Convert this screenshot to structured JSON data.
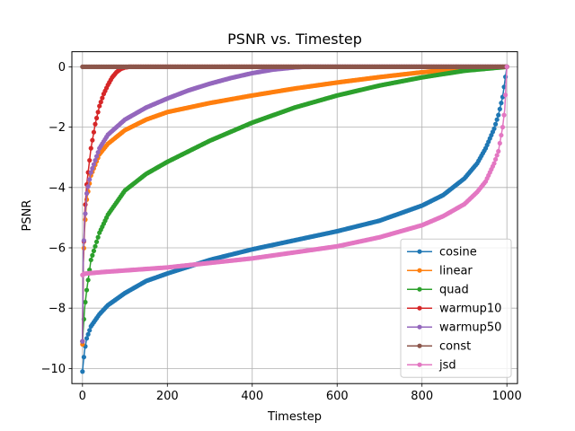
{
  "chart_data": {
    "type": "line",
    "title": "PSNR vs. Timestep",
    "xlabel": "Timestep",
    "ylabel": "PSNR",
    "xlim": [
      -25,
      1025
    ],
    "ylim": [
      -10.5,
      0.5
    ],
    "xticks": [
      0,
      200,
      400,
      600,
      800,
      1000
    ],
    "yticks": [
      -10,
      -8,
      -6,
      -4,
      -2,
      0
    ],
    "xtick_labels": [
      "0",
      "200",
      "400",
      "600",
      "800",
      "1000"
    ],
    "ytick_labels": [
      "−10",
      "−8",
      "−6",
      "−4",
      "−2",
      "0"
    ],
    "grid": true,
    "legend_position": "lower-right",
    "series": [
      {
        "name": "cosine",
        "color": "#1f77b4",
        "x": [
          0,
          2,
          5,
          10,
          20,
          40,
          60,
          100,
          150,
          200,
          300,
          400,
          500,
          600,
          700,
          800,
          850,
          900,
          930,
          950,
          970,
          980,
          990,
          995,
          1000
        ],
        "values": [
          -10.1,
          -9.8,
          -9.4,
          -9.0,
          -8.6,
          -8.2,
          -7.9,
          -7.5,
          -7.1,
          -6.85,
          -6.4,
          -6.05,
          -5.75,
          -5.45,
          -5.1,
          -4.6,
          -4.25,
          -3.7,
          -3.2,
          -2.7,
          -2.05,
          -1.6,
          -1.0,
          -0.5,
          0.0
        ]
      },
      {
        "name": "linear",
        "color": "#ff7f0e",
        "x": [
          0,
          2,
          5,
          10,
          20,
          40,
          60,
          100,
          150,
          200,
          300,
          400,
          500,
          600,
          700,
          800,
          900,
          1000
        ],
        "values": [
          -9.2,
          -6.5,
          -5.4,
          -4.4,
          -3.6,
          -2.9,
          -2.55,
          -2.1,
          -1.75,
          -1.5,
          -1.2,
          -0.95,
          -0.72,
          -0.52,
          -0.34,
          -0.18,
          -0.06,
          0.0
        ]
      },
      {
        "name": "quad",
        "color": "#2ca02c",
        "x": [
          0,
          5,
          10,
          20,
          40,
          60,
          100,
          150,
          200,
          300,
          400,
          500,
          600,
          700,
          800,
          900,
          1000
        ],
        "values": [
          -9.1,
          -8.0,
          -7.4,
          -6.4,
          -5.5,
          -4.9,
          -4.1,
          -3.55,
          -3.15,
          -2.45,
          -1.85,
          -1.35,
          -0.95,
          -0.62,
          -0.35,
          -0.13,
          0.0
        ]
      },
      {
        "name": "warmup10",
        "color": "#d62728",
        "x": [
          0,
          2,
          5,
          10,
          20,
          30,
          40,
          50,
          60,
          70,
          80,
          90,
          100,
          110,
          1000
        ],
        "values": [
          -9.1,
          -6.5,
          -4.9,
          -3.9,
          -2.7,
          -1.9,
          -1.3,
          -0.9,
          -0.6,
          -0.35,
          -0.18,
          -0.07,
          -0.02,
          0.0,
          0.0
        ]
      },
      {
        "name": "warmup50",
        "color": "#9467bd",
        "x": [
          0,
          2,
          5,
          10,
          20,
          40,
          60,
          100,
          150,
          200,
          250,
          300,
          350,
          400,
          450,
          500,
          520,
          1000
        ],
        "values": [
          -9.1,
          -6.2,
          -5.2,
          -4.2,
          -3.5,
          -2.7,
          -2.25,
          -1.75,
          -1.35,
          -1.05,
          -0.78,
          -0.56,
          -0.37,
          -0.21,
          -0.09,
          -0.02,
          0.0,
          0.0
        ]
      },
      {
        "name": "const",
        "color": "#8c564b",
        "x": [
          0,
          1000
        ],
        "values": [
          0.0,
          0.0
        ]
      },
      {
        "name": "jsd",
        "color": "#e377c2",
        "x": [
          0,
          1,
          2,
          5,
          10,
          50,
          100,
          200,
          300,
          400,
          500,
          600,
          700,
          800,
          850,
          900,
          930,
          950,
          970,
          980,
          990,
          995,
          1000
        ],
        "values": [
          -6.9,
          -6.8,
          -6.88,
          -6.86,
          -6.85,
          -6.8,
          -6.75,
          -6.65,
          -6.5,
          -6.35,
          -6.15,
          -5.95,
          -5.65,
          -5.25,
          -4.95,
          -4.55,
          -4.15,
          -3.8,
          -3.2,
          -2.8,
          -2.0,
          -1.4,
          0.0
        ]
      }
    ]
  }
}
